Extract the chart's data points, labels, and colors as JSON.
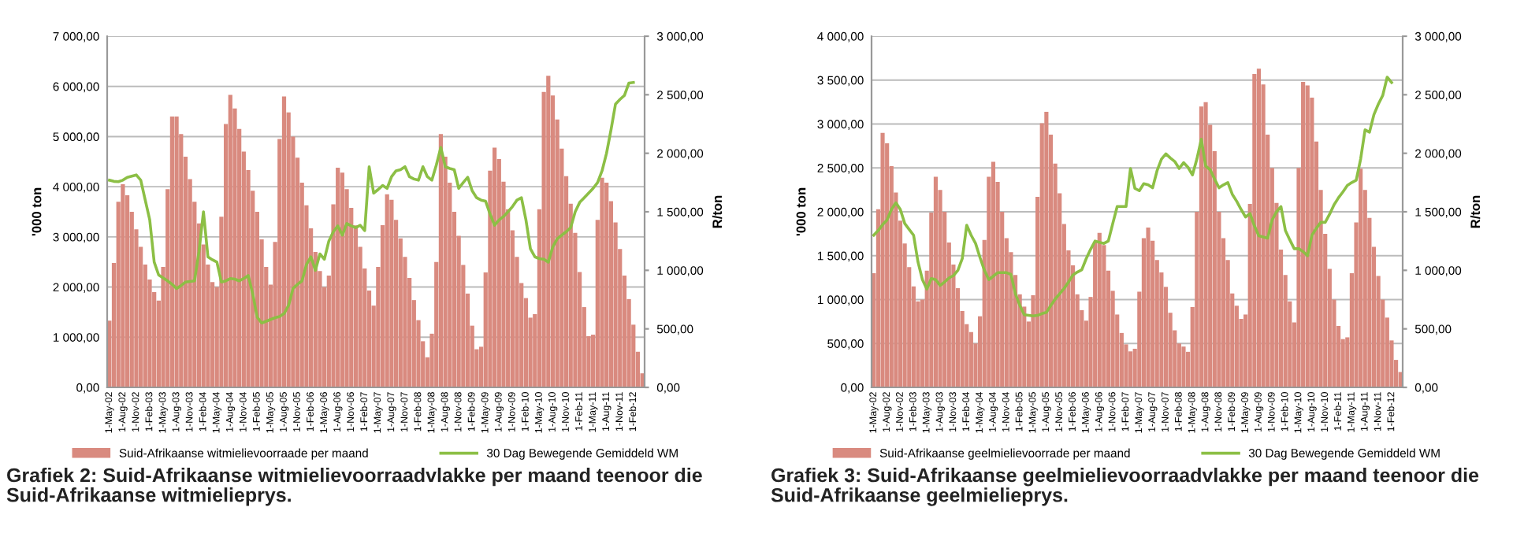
{
  "chart_data": [
    {
      "type": "bar",
      "categories": [
        "1-May-02",
        null,
        null,
        "1-Aug-02",
        null,
        null,
        "1-Nov-02",
        null,
        null,
        "1-Feb-03",
        null,
        null,
        "1-May-03",
        null,
        null,
        "1-Aug-03",
        null,
        null,
        "1-Nov-03",
        null,
        null,
        "1-Feb-04",
        null,
        null,
        "1-May-04",
        null,
        null,
        "1-Aug-04",
        null,
        null,
        "1-Nov-04",
        null,
        null,
        "1-Feb-05",
        null,
        null,
        "1-May-05",
        null,
        null,
        "1-Aug-05",
        null,
        null,
        "1-Nov-05",
        null,
        null,
        "1-Feb-06",
        null,
        null,
        "1-May-06",
        null,
        null,
        "1-Aug-06",
        null,
        null,
        "1-Nov-06",
        null,
        null,
        "1-Feb-07",
        null,
        null,
        "1-May-07",
        null,
        null,
        "1-Aug-07",
        null,
        null,
        "1-Nov-07",
        null,
        null,
        "1-Feb-08",
        null,
        null,
        "1-May-08",
        null,
        null,
        "1-Aug-08",
        null,
        null,
        "1-Nov-08",
        null,
        null,
        "1-Feb-09",
        null,
        null,
        "1-May-09",
        null,
        null,
        "1-Aug-09",
        null,
        null,
        "1-Nov-09",
        null,
        null,
        "1-Feb-10",
        null,
        null,
        "1-May-10",
        null,
        null,
        "1-Aug-10",
        null,
        null,
        "1-Nov-10",
        null,
        null,
        "1-Feb-11",
        null,
        null,
        "1-May-11",
        null,
        null,
        "1-Aug-11",
        null,
        null,
        "1-Nov-11",
        null,
        null,
        "1-Feb-12",
        null,
        null
      ],
      "series": [
        {
          "name": "Suid-Afrikaanse witmielievoorraade per maand",
          "color": "#d98a7f",
          "values": [
            1330,
            2480,
            3700,
            4050,
            3830,
            3500,
            3150,
            2800,
            2450,
            2150,
            1900,
            1730,
            2400,
            3950,
            5400,
            5400,
            5050,
            4600,
            4150,
            3700,
            3270,
            2850,
            2450,
            2100,
            2000,
            3400,
            5250,
            5830,
            5560,
            5150,
            4700,
            4330,
            3920,
            3500,
            2950,
            2400,
            2050,
            2900,
            4950,
            5800,
            5480,
            5000,
            4580,
            4080,
            3630,
            3170,
            2700,
            2320,
            2000,
            2230,
            3650,
            4380,
            4280,
            3950,
            3580,
            3230,
            2800,
            2370,
            1930,
            1630,
            2400,
            3235,
            3850,
            3740,
            3340,
            2970,
            2600,
            2180,
            1740,
            1340,
            920,
            600,
            1070,
            2500,
            5050,
            4600,
            4080,
            3500,
            3020,
            2440,
            1870,
            1230,
            760,
            810,
            2290,
            4320,
            4780,
            4550,
            4100,
            3550,
            3130,
            2600,
            2080,
            1780,
            1390,
            1460,
            3550,
            5890,
            6210,
            5820,
            5340,
            4760,
            4210,
            3660,
            3080,
            2300,
            1600,
            1020,
            1050,
            3340,
            4180,
            4080,
            3710,
            3290,
            2760,
            2230,
            1760,
            1250,
            710,
            280
          ]
        },
        {
          "name": "30 Dag Bewegende Gemiddeld WM",
          "type": "line",
          "axis": "y2",
          "color": "#8cbf45",
          "values": [
            1770,
            1760,
            1757,
            1770,
            1795,
            1805,
            1815,
            1770,
            1600,
            1432,
            1070,
            960,
            935,
            910,
            880,
            845,
            870,
            900,
            905,
            910,
            1160,
            1500,
            1115,
            1090,
            1070,
            900,
            910,
            930,
            925,
            910,
            930,
            955,
            800,
            600,
            550,
            565,
            580,
            595,
            605,
            630,
            700,
            845,
            880,
            910,
            1050,
            1115,
            1000,
            1140,
            1095,
            1250,
            1330,
            1380,
            1300,
            1400,
            1380,
            1365,
            1385,
            1340,
            1885,
            1660,
            1690,
            1725,
            1700,
            1800,
            1850,
            1860,
            1885,
            1800,
            1780,
            1770,
            1885,
            1800,
            1770,
            1900,
            2050,
            1885,
            1870,
            1860,
            1700,
            1750,
            1795,
            1680,
            1620,
            1600,
            1590,
            1480,
            1385,
            1430,
            1460,
            1500,
            1545,
            1600,
            1620,
            1432,
            1185,
            1115,
            1100,
            1095,
            1070,
            1200,
            1270,
            1300,
            1330,
            1365,
            1500,
            1580,
            1620,
            1660,
            1700,
            1750,
            1850,
            2000,
            2200,
            2420,
            2460,
            2495,
            2600,
            2605,
            null,
            null
          ]
        }
      ],
      "ylim": [
        0,
        7000
      ],
      "yticks": [
        {
          "value": 0,
          "label": "0,00"
        },
        {
          "value": 1000,
          "label": "1 000,00"
        },
        {
          "value": 2000,
          "label": "2 000,00"
        },
        {
          "value": 3000,
          "label": "3 000,00"
        },
        {
          "value": 4000,
          "label": "4 000,00"
        },
        {
          "value": 5000,
          "label": "5 000,00"
        },
        {
          "value": 6000,
          "label": "6 000,00"
        },
        {
          "value": 7000,
          "label": "7 000,00"
        }
      ],
      "y2lim": [
        0,
        3000
      ],
      "y2ticks": [
        {
          "value": 0,
          "label": "0,00"
        },
        {
          "value": 500,
          "label": "500,00"
        },
        {
          "value": 1000,
          "label": "1 000,00"
        },
        {
          "value": 1500,
          "label": "1 500,00"
        },
        {
          "value": 2000,
          "label": "2 000,00"
        },
        {
          "value": 2500,
          "label": "2 500,00"
        },
        {
          "value": 3000,
          "label": "3 000,00"
        }
      ],
      "ylabel": "'000 ton",
      "y2label": "R/ton",
      "grid": "y",
      "legend": "bottom",
      "annotations": [
        "Grafiek 2: Suid-Afrikaanse witmielievoorraadvlakke per maand teenoor die\nSuid-Afrikaanse witmielieprys."
      ]
    },
    {
      "type": "bar",
      "categories": [
        "1-May-02",
        null,
        null,
        "1-Aug-02",
        null,
        null,
        "1-Nov-02",
        null,
        null,
        "1-Feb-03",
        null,
        null,
        "1-May-03",
        null,
        null,
        "1-Aug-03",
        null,
        null,
        "1-Nov-03",
        null,
        null,
        "1-Feb-04",
        null,
        null,
        "1-May-04",
        null,
        null,
        "1-Aug-04",
        null,
        null,
        "1-Nov-04",
        null,
        null,
        "1-Feb-05",
        null,
        null,
        "1-May-05",
        null,
        null,
        "1-Aug-05",
        null,
        null,
        "1-Nov-05",
        null,
        null,
        "1-Feb-06",
        null,
        null,
        "1-May-06",
        null,
        null,
        "1-Aug-06",
        null,
        null,
        "1-Nov-06",
        null,
        null,
        "1-Feb-07",
        null,
        null,
        "1-May-07",
        null,
        null,
        "1-Aug-07",
        null,
        null,
        "1-Nov-07",
        null,
        null,
        "1-Feb-08",
        null,
        null,
        "1-May-08",
        null,
        null,
        "1-Aug-08",
        null,
        null,
        "1-Nov-08",
        null,
        null,
        "1-Feb-09",
        null,
        null,
        "1-May-09",
        null,
        null,
        "1-Aug-09",
        null,
        null,
        "1-Nov-09",
        null,
        null,
        "1-Feb-10",
        null,
        null,
        "1-May-10",
        null,
        null,
        "1-Aug-10",
        null,
        null,
        "1-Nov-10",
        null,
        null,
        "1-Feb-11",
        null,
        null,
        "1-May-11",
        null,
        null,
        "1-Aug-11",
        null,
        null,
        "1-Nov-11",
        null,
        null,
        "1-Feb-12",
        null,
        null
      ],
      "series": [
        {
          "name": "Suid-Afrikaanse geelmielievoorrade per maand",
          "color": "#d98a7f",
          "values": [
            1300,
            2030,
            2900,
            2780,
            2520,
            2220,
            1900,
            1640,
            1370,
            1150,
            980,
            1000,
            1330,
            1990,
            2400,
            2250,
            2000,
            1650,
            1400,
            1130,
            870,
            720,
            630,
            500,
            810,
            1680,
            2400,
            2570,
            2340,
            2000,
            1700,
            1540,
            1280,
            1060,
            920,
            750,
            1050,
            2170,
            3010,
            3140,
            2880,
            2550,
            2210,
            1860,
            1560,
            1390,
            1060,
            880,
            760,
            1030,
            1650,
            1760,
            1620,
            1330,
            1100,
            830,
            620,
            490,
            410,
            440,
            1090,
            1700,
            1820,
            1670,
            1450,
            1310,
            1145,
            850,
            650,
            500,
            465,
            405,
            915,
            2000,
            3200,
            3250,
            2990,
            2690,
            2000,
            1700,
            1450,
            1070,
            930,
            780,
            830,
            2090,
            3570,
            3630,
            3450,
            2880,
            2500,
            2100,
            1570,
            1280,
            980,
            740,
            2500,
            3480,
            3440,
            3300,
            2800,
            2250,
            1750,
            1350,
            1000,
            700,
            550,
            570,
            1300,
            1880,
            2490,
            2250,
            1930,
            1600,
            1270,
            1000,
            795,
            535,
            313,
            175
          ]
        },
        {
          "name": "30 Dag Bewegende Gemiddeld WM",
          "type": "line",
          "axis": "y2",
          "color": "#8cbf45",
          "values": [
            1300,
            1340,
            1390,
            1430,
            1520,
            1577,
            1520,
            1400,
            1350,
            1300,
            1070,
            920,
            840,
            930,
            920,
            870,
            900,
            935,
            955,
            1000,
            1100,
            1385,
            1300,
            1230,
            1110,
            1000,
            920,
            950,
            980,
            980,
            980,
            965,
            800,
            700,
            620,
            615,
            610,
            615,
            630,
            640,
            700,
            755,
            800,
            845,
            900,
            960,
            985,
            1005,
            1100,
            1180,
            1250,
            1240,
            1230,
            1250,
            1400,
            1545,
            1545,
            1545,
            1870,
            1700,
            1680,
            1740,
            1730,
            1705,
            1850,
            1950,
            1995,
            1960,
            1930,
            1870,
            1920,
            1880,
            1815,
            1950,
            2120,
            1890,
            1860,
            1780,
            1705,
            1730,
            1750,
            1650,
            1590,
            1520,
            1455,
            1485,
            1380,
            1295,
            1285,
            1275,
            1430,
            1500,
            1545,
            1340,
            1260,
            1185,
            1185,
            1160,
            1125,
            1300,
            1360,
            1410,
            1410,
            1480,
            1560,
            1620,
            1670,
            1725,
            1750,
            1770,
            1950,
            2200,
            2180,
            2330,
            2420,
            2495,
            2650,
            2605,
            null,
            null
          ]
        }
      ],
      "ylim": [
        0,
        4000
      ],
      "yticks": [
        {
          "value": 0,
          "label": "0,00"
        },
        {
          "value": 500,
          "label": "500,00"
        },
        {
          "value": 1000,
          "label": "1 000,00"
        },
        {
          "value": 1500,
          "label": "1 500,00"
        },
        {
          "value": 2000,
          "label": "2 000,00"
        },
        {
          "value": 2500,
          "label": "2 500,00"
        },
        {
          "value": 3000,
          "label": "3 000,00"
        },
        {
          "value": 3500,
          "label": "3 500,00"
        },
        {
          "value": 4000,
          "label": "4 000,00"
        }
      ],
      "y2lim": [
        0,
        3000
      ],
      "y2ticks": [
        {
          "value": 0,
          "label": "0,00"
        },
        {
          "value": 500,
          "label": "500,00"
        },
        {
          "value": 1000,
          "label": "1 000,00"
        },
        {
          "value": 1500,
          "label": "1 500,00"
        },
        {
          "value": 2000,
          "label": "2 000,00"
        },
        {
          "value": 2500,
          "label": "2 500,00"
        },
        {
          "value": 3000,
          "label": "3 000,00"
        }
      ],
      "ylabel": "'000 ton",
      "y2label": "R/ton",
      "grid": "y",
      "legend": "bottom",
      "annotations": [
        "Grafiek 3: Suid-Afrikaanse geelmielievoorraadvlakke per maand teenoor die\nSuid-Afrikaanse geelmielieprys."
      ]
    }
  ]
}
